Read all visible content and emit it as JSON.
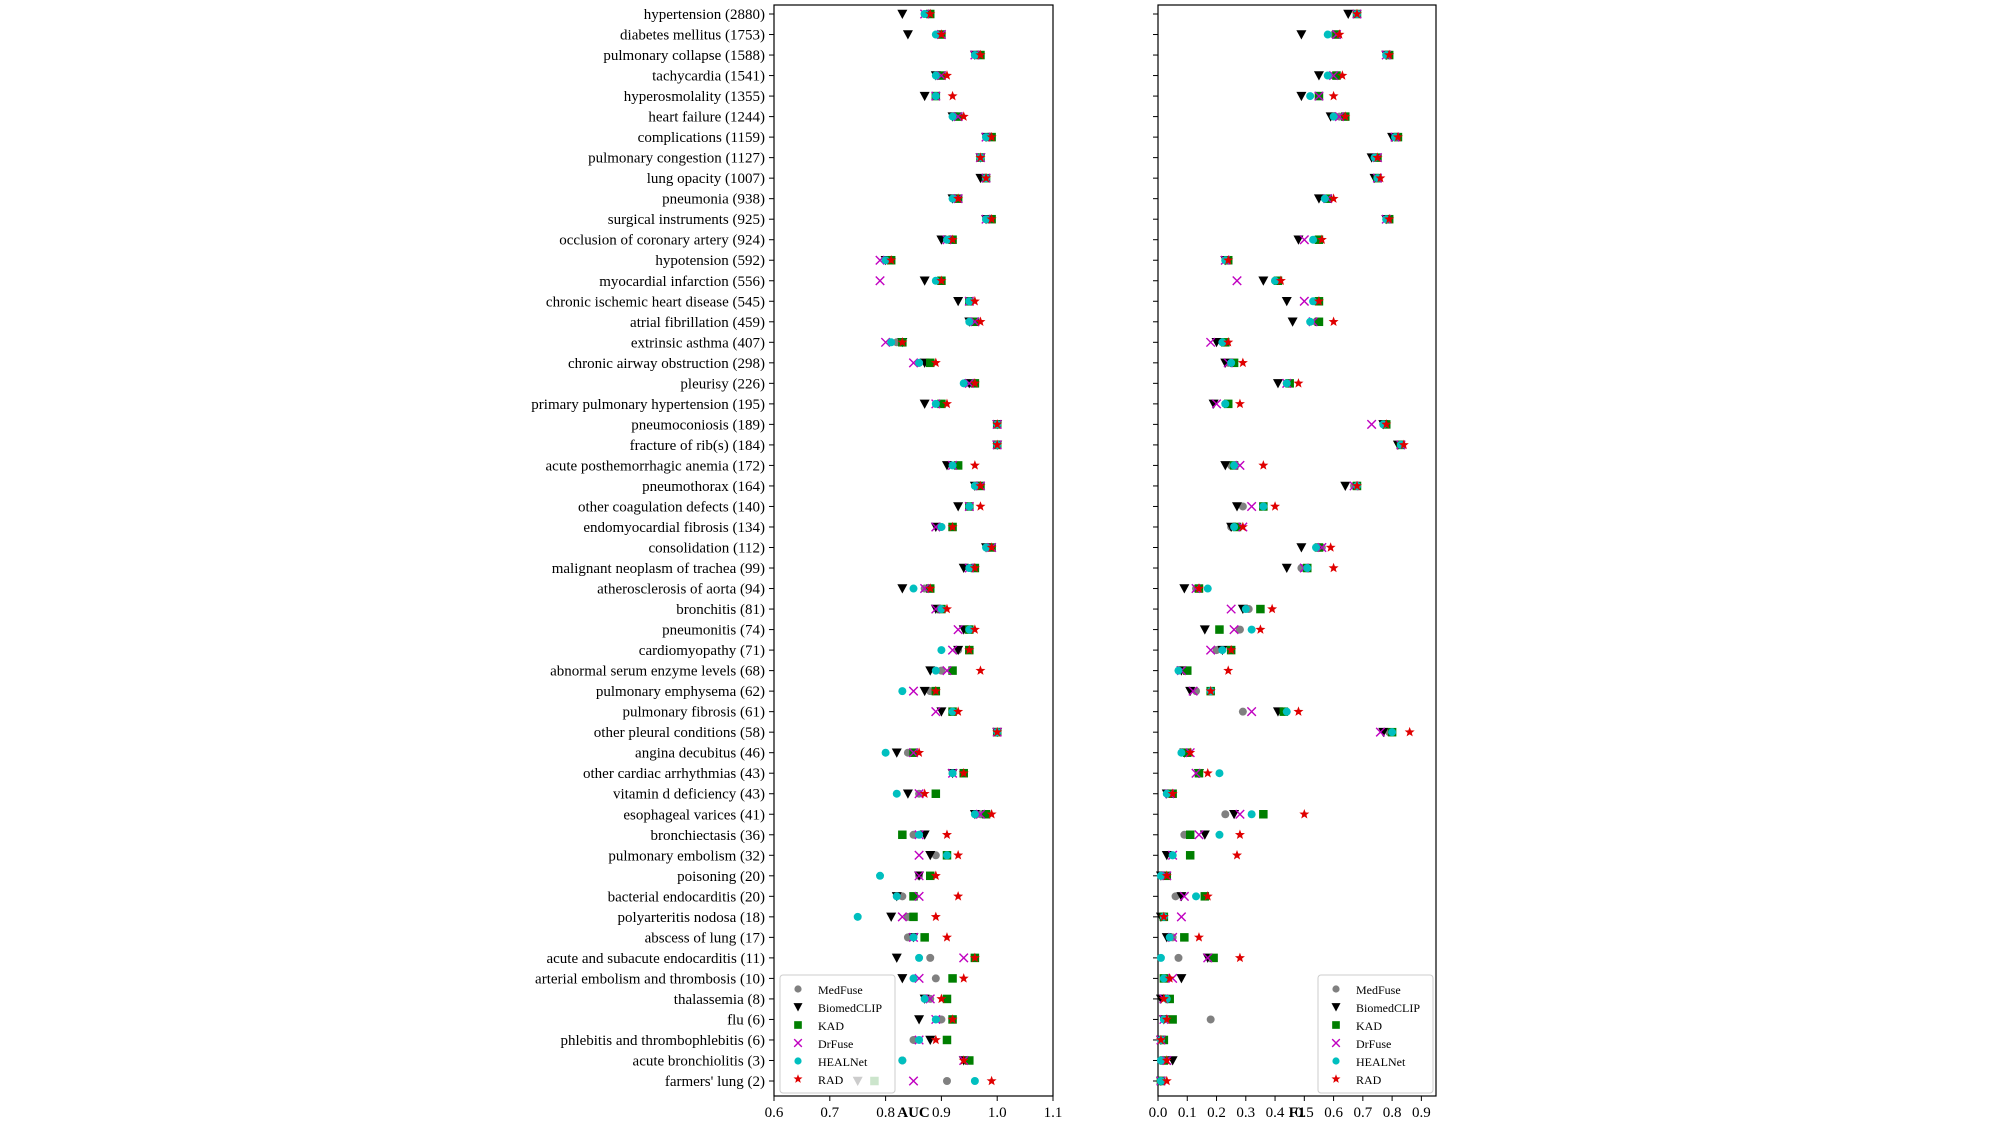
{
  "chart_data": [
    {
      "type": "scatter",
      "title": "",
      "xlabel": "AUC",
      "ylabel": "",
      "xlim": [
        0.6,
        1.1
      ],
      "xticks": [
        "0.6",
        "0.7",
        "0.8",
        "0.9",
        "1.0",
        "1.1"
      ],
      "grid": false,
      "legend_position": "bottom-left",
      "categories": [
        "hypertension (2880)",
        "diabetes mellitus (1753)",
        "pulmonary collapse (1588)",
        "tachycardia (1541)",
        "hyperosmolality (1355)",
        "heart failure (1244)",
        "complications (1159)",
        "pulmonary congestion (1127)",
        "lung opacity (1007)",
        "pneumonia (938)",
        "surgical instruments (925)",
        "occlusion of coronary artery (924)",
        "hypotension (592)",
        "myocardial infarction (556)",
        "chronic ischemic heart disease (545)",
        "atrial fibrillation (459)",
        "extrinsic asthma (407)",
        "chronic airway obstruction (298)",
        "pleurisy (226)",
        "primary pulmonary hypertension (195)",
        "pneumoconiosis (189)",
        "fracture of rib(s) (184)",
        "acute posthemorrhagic anemia (172)",
        "pneumothorax (164)",
        "other coagulation defects (140)",
        "endomyocardial fibrosis (134)",
        "consolidation (112)",
        "malignant neoplasm of trachea (99)",
        "atherosclerosis of aorta (94)",
        "bronchitis (81)",
        "pneumonitis (74)",
        "cardiomyopathy (71)",
        "abnormal serum enzyme levels (68)",
        "pulmonary emphysema (62)",
        "pulmonary fibrosis (61)",
        "other pleural conditions (58)",
        "angina decubitus (46)",
        "other cardiac arrhythmias (43)",
        "vitamin d deficiency (43)",
        "esophageal varices (41)",
        "bronchiectasis (36)",
        "pulmonary embolism (32)",
        "poisoning (20)",
        "bacterial endocarditis (20)",
        "polyarteritis nodosa (18)",
        "abscess of lung (17)",
        "acute and subacute endocarditis (11)",
        "arterial embolism and thrombosis (10)",
        "thalassemia (8)",
        "flu (6)",
        "phlebitis and thrombophlebitis (6)",
        "acute bronchiolitis (3)",
        "farmers' lung (2)"
      ],
      "series": [
        {
          "name": "MedFuse",
          "marker": "circle",
          "color": "#808080",
          "values": [
            0.87,
            0.9,
            0.96,
            0.9,
            0.89,
            0.93,
            0.98,
            0.97,
            0.98,
            0.93,
            0.98,
            0.91,
            0.8,
            0.9,
            0.95,
            0.96,
            0.82,
            0.86,
            0.95,
            0.9,
            1.0,
            1.0,
            0.93,
            0.97,
            0.95,
            0.9,
            0.99,
            0.95,
            0.87,
            0.9,
            0.95,
            0.93,
            0.9,
            0.88,
            0.92,
            1.0,
            0.84,
            0.92,
            0.86,
            0.97,
            0.85,
            0.89,
            0.86,
            0.83,
            0.84,
            0.84,
            0.88,
            0.89,
            0.88,
            0.9,
            0.85,
            0.83,
            0.91
          ]
        },
        {
          "name": "BiomedCLIP",
          "marker": "triangle-down",
          "color": "#000000",
          "values": [
            0.83,
            0.84,
            0.96,
            0.89,
            0.87,
            0.92,
            0.98,
            0.97,
            0.97,
            0.92,
            0.98,
            0.9,
            0.8,
            0.87,
            0.93,
            0.95,
            0.83,
            0.87,
            0.95,
            0.87,
            1.0,
            1.0,
            0.91,
            0.96,
            0.93,
            0.89,
            0.98,
            0.94,
            0.83,
            0.89,
            0.94,
            0.93,
            0.88,
            0.87,
            0.9,
            1.0,
            0.82,
            0.92,
            0.84,
            0.96,
            0.87,
            0.88,
            0.86,
            0.82,
            0.81,
            0.85,
            0.82,
            0.83,
            0.87,
            0.86,
            0.88,
            0.94,
            0.75
          ]
        },
        {
          "name": "KAD",
          "marker": "square",
          "color": "#007f00",
          "values": [
            0.88,
            0.9,
            0.97,
            0.9,
            0.89,
            0.93,
            0.99,
            0.97,
            0.98,
            0.93,
            0.99,
            0.92,
            0.81,
            0.9,
            0.95,
            0.96,
            0.83,
            0.88,
            0.96,
            0.9,
            1.0,
            1.0,
            0.93,
            0.97,
            0.95,
            0.92,
            0.99,
            0.96,
            0.88,
            0.9,
            0.95,
            0.95,
            0.92,
            0.89,
            0.92,
            1.0,
            0.85,
            0.94,
            0.89,
            0.98,
            0.83,
            0.91,
            0.88,
            0.85,
            0.85,
            0.87,
            0.96,
            0.92,
            0.91,
            0.92,
            0.91,
            0.95,
            0.78
          ]
        },
        {
          "name": "DrFuse",
          "marker": "x",
          "color": "#c000c0",
          "values": [
            0.87,
            0.9,
            0.96,
            0.9,
            0.89,
            0.93,
            0.98,
            0.97,
            0.98,
            0.93,
            0.98,
            0.91,
            0.79,
            0.79,
            0.95,
            0.96,
            0.8,
            0.85,
            0.95,
            0.89,
            1.0,
            1.0,
            0.92,
            0.97,
            0.95,
            0.89,
            0.99,
            0.95,
            0.87,
            0.89,
            0.93,
            0.92,
            0.91,
            0.85,
            0.89,
            1.0,
            0.85,
            0.92,
            0.86,
            0.97,
            0.86,
            0.86,
            0.86,
            0.86,
            0.83,
            0.85,
            0.94,
            0.86,
            0.88,
            0.89,
            0.86,
            0.94,
            0.85
          ]
        },
        {
          "name": "HEALNet",
          "marker": "circle",
          "color": "#00bfbf",
          "values": [
            0.87,
            0.89,
            0.96,
            0.89,
            0.89,
            0.92,
            0.98,
            0.97,
            0.98,
            0.92,
            0.98,
            0.91,
            0.8,
            0.89,
            0.95,
            0.95,
            0.81,
            0.86,
            0.94,
            0.89,
            1.0,
            1.0,
            0.92,
            0.96,
            0.95,
            0.9,
            0.98,
            0.95,
            0.85,
            0.9,
            0.95,
            0.9,
            0.89,
            0.83,
            0.92,
            1.0,
            0.8,
            0.92,
            0.82,
            0.96,
            0.86,
            0.91,
            0.79,
            0.82,
            0.75,
            0.85,
            0.86,
            0.85,
            0.87,
            0.89,
            0.86,
            0.83,
            0.96
          ]
        },
        {
          "name": "RAD",
          "marker": "star",
          "color": "#e00000",
          "values": [
            0.88,
            0.9,
            0.97,
            0.91,
            0.92,
            0.94,
            0.99,
            0.97,
            0.98,
            0.93,
            0.99,
            0.92,
            0.81,
            0.9,
            0.96,
            0.97,
            0.83,
            0.89,
            0.96,
            0.91,
            1.0,
            1.0,
            0.96,
            0.97,
            0.97,
            0.92,
            0.99,
            0.96,
            0.88,
            0.91,
            0.96,
            0.95,
            0.97,
            0.89,
            0.93,
            1.0,
            0.86,
            0.94,
            0.87,
            0.99,
            0.91,
            0.93,
            0.89,
            0.93,
            0.89,
            0.91,
            0.96,
            0.94,
            0.9,
            0.92,
            0.89,
            0.94,
            0.99
          ]
        }
      ]
    },
    {
      "type": "scatter",
      "title": "",
      "xlabel": "F1",
      "ylabel": "",
      "xlim": [
        0.0,
        0.95
      ],
      "xticks": [
        "0.0",
        "0.1",
        "0.2",
        "0.3",
        "0.4",
        "0.5",
        "0.6",
        "0.7",
        "0.8",
        "0.9"
      ],
      "grid": false,
      "legend_position": "bottom-right",
      "series": [
        {
          "name": "MedFuse",
          "marker": "circle",
          "color": "#808080",
          "values": [
            0.68,
            0.6,
            0.78,
            0.6,
            0.55,
            0.62,
            0.81,
            0.75,
            0.75,
            0.58,
            0.78,
            0.54,
            0.23,
            0.4,
            0.54,
            0.54,
            0.22,
            0.24,
            0.44,
            0.23,
            0.77,
            0.83,
            0.25,
            0.67,
            0.29,
            0.25,
            0.56,
            0.49,
            0.13,
            0.31,
            0.28,
            0.2,
            0.1,
            0.13,
            0.29,
            0.79,
            0.1,
            0.14,
            0.04,
            0.23,
            0.09,
            0.05,
            0.02,
            0.06,
            0.02,
            0.05,
            0.07,
            0.03,
            0.03,
            0.18,
            0.01,
            0.02,
            0.01
          ]
        },
        {
          "name": "BiomedCLIP",
          "marker": "triangle-down",
          "color": "#000000",
          "values": [
            0.65,
            0.49,
            0.78,
            0.55,
            0.49,
            0.59,
            0.8,
            0.73,
            0.74,
            0.55,
            0.78,
            0.48,
            0.23,
            0.36,
            0.44,
            0.46,
            0.2,
            0.23,
            0.41,
            0.19,
            0.77,
            0.82,
            0.23,
            0.64,
            0.27,
            0.25,
            0.49,
            0.44,
            0.09,
            0.29,
            0.16,
            0.22,
            0.08,
            0.11,
            0.41,
            0.77,
            0.09,
            0.14,
            0.03,
            0.26,
            0.16,
            0.03,
            0.01,
            0.08,
            0.01,
            0.03,
            0.17,
            0.08,
            0.01,
            0.02,
            0.01,
            0.05,
            0.01
          ]
        },
        {
          "name": "KAD",
          "marker": "square",
          "color": "#007f00",
          "values": [
            0.68,
            0.61,
            0.79,
            0.61,
            0.55,
            0.64,
            0.82,
            0.75,
            0.75,
            0.58,
            0.79,
            0.55,
            0.24,
            0.41,
            0.55,
            0.55,
            0.23,
            0.26,
            0.45,
            0.24,
            0.78,
            0.83,
            0.26,
            0.68,
            0.36,
            0.27,
            0.55,
            0.51,
            0.14,
            0.35,
            0.21,
            0.25,
            0.1,
            0.18,
            0.43,
            0.8,
            0.1,
            0.14,
            0.05,
            0.36,
            0.11,
            0.11,
            0.03,
            0.16,
            0.02,
            0.09,
            0.19,
            0.02,
            0.04,
            0.05,
            0.02,
            0.02,
            0.01
          ]
        },
        {
          "name": "DrFuse",
          "marker": "x",
          "color": "#c000c0",
          "values": [
            0.68,
            0.61,
            0.78,
            0.6,
            0.55,
            0.62,
            0.81,
            0.75,
            0.75,
            0.58,
            0.78,
            0.5,
            0.23,
            0.27,
            0.5,
            0.53,
            0.18,
            0.24,
            0.44,
            0.2,
            0.73,
            0.83,
            0.28,
            0.67,
            0.32,
            0.29,
            0.56,
            0.5,
            0.13,
            0.25,
            0.26,
            0.18,
            0.08,
            0.12,
            0.32,
            0.76,
            0.11,
            0.13,
            0.04,
            0.28,
            0.14,
            0.05,
            0.03,
            0.09,
            0.08,
            0.05,
            0.17,
            0.05,
            0.02,
            0.02,
            0.01,
            0.03,
            0.01
          ]
        },
        {
          "name": "HEALNet",
          "marker": "circle",
          "color": "#00bfbf",
          "values": [
            0.68,
            0.58,
            0.78,
            0.58,
            0.52,
            0.6,
            0.81,
            0.74,
            0.75,
            0.57,
            0.78,
            0.53,
            0.23,
            0.4,
            0.53,
            0.52,
            0.22,
            0.25,
            0.44,
            0.23,
            0.77,
            0.83,
            0.26,
            0.68,
            0.36,
            0.26,
            0.54,
            0.51,
            0.17,
            0.3,
            0.32,
            0.22,
            0.07,
            0.18,
            0.44,
            0.8,
            0.08,
            0.21,
            0.03,
            0.32,
            0.21,
            0.05,
            0.01,
            0.13,
            0.02,
            0.04,
            0.01,
            0.02,
            0.03,
            0.02,
            0.01,
            0.01,
            0.01
          ]
        },
        {
          "name": "RAD",
          "marker": "star",
          "color": "#e00000",
          "values": [
            0.68,
            0.62,
            0.79,
            0.63,
            0.6,
            0.64,
            0.82,
            0.75,
            0.76,
            0.6,
            0.79,
            0.56,
            0.24,
            0.42,
            0.55,
            0.6,
            0.24,
            0.29,
            0.48,
            0.28,
            0.78,
            0.84,
            0.36,
            0.68,
            0.4,
            0.29,
            0.59,
            0.6,
            0.14,
            0.39,
            0.35,
            0.25,
            0.24,
            0.18,
            0.48,
            0.86,
            0.11,
            0.17,
            0.05,
            0.5,
            0.28,
            0.27,
            0.03,
            0.17,
            0.02,
            0.14,
            0.28,
            0.04,
            0.02,
            0.03,
            0.01,
            0.03,
            0.03
          ]
        }
      ]
    }
  ]
}
